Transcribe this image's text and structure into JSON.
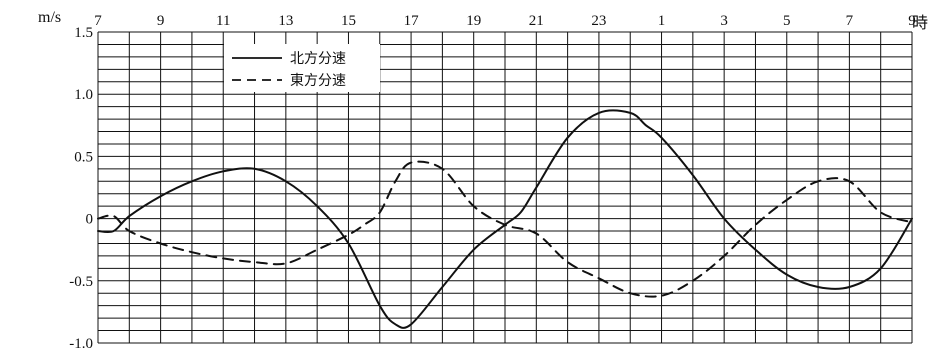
{
  "chart_data": {
    "type": "line",
    "y_unit": "m/s",
    "x_unit": "時",
    "x_tick_labels": [
      "7",
      "9",
      "11",
      "13",
      "15",
      "17",
      "19",
      "21",
      "23",
      "1",
      "3",
      "5",
      "7",
      "9"
    ],
    "y_tick_labels": [
      "1.5",
      "1.0",
      "0.5",
      "0",
      "-0.5",
      "-1.0"
    ],
    "ylim": [
      -1.0,
      1.5
    ],
    "xlim": [
      0,
      26
    ],
    "grid": true,
    "legend_position": "top-left",
    "series": [
      {
        "name": "北方分速",
        "style": "solid",
        "color": "#111111",
        "x": [
          0,
          0.5,
          1,
          2,
          3,
          4,
          5,
          6,
          7,
          8,
          9,
          9.5,
          10,
          11,
          12,
          13,
          13.5,
          14,
          15,
          16,
          17,
          17.5,
          18,
          19,
          20,
          21,
          22,
          23,
          24,
          25,
          26
        ],
        "y": [
          -0.1,
          -0.1,
          0.02,
          0.18,
          0.3,
          0.38,
          0.4,
          0.3,
          0.1,
          -0.2,
          -0.7,
          -0.85,
          -0.85,
          -0.55,
          -0.25,
          -0.05,
          0.05,
          0.25,
          0.65,
          0.85,
          0.85,
          0.75,
          0.65,
          0.35,
          0.0,
          -0.25,
          -0.45,
          -0.55,
          -0.55,
          -0.4,
          0.0
        ]
      },
      {
        "name": "東方分速",
        "style": "dashed",
        "color": "#111111",
        "x": [
          0,
          0.5,
          1,
          2,
          3,
          4,
          5,
          6,
          7,
          8,
          8.5,
          9,
          9.5,
          10,
          11,
          12,
          13,
          14,
          15,
          16,
          17,
          18,
          19,
          20,
          21,
          22,
          23,
          24,
          25,
          26
        ],
        "y": [
          0.0,
          0.02,
          -0.1,
          -0.2,
          -0.27,
          -0.32,
          -0.35,
          -0.36,
          -0.25,
          -0.13,
          -0.05,
          0.05,
          0.3,
          0.45,
          0.4,
          0.1,
          -0.05,
          -0.12,
          -0.35,
          -0.48,
          -0.6,
          -0.62,
          -0.5,
          -0.3,
          -0.05,
          0.15,
          0.3,
          0.3,
          0.05,
          -0.03
        ]
      }
    ]
  }
}
